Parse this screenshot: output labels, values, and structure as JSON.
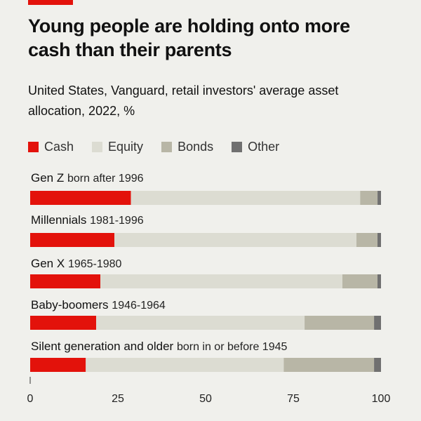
{
  "header": {
    "title": "Young people are holding onto more cash than their parents",
    "subtitle": "United States, Vanguard, retail investors' average asset allocation, 2022, %"
  },
  "colors": {
    "accent": "#e3120b",
    "cash": "#e3120b",
    "equity": "#dcdcd2",
    "bonds": "#b8b6a6",
    "other": "#707070"
  },
  "legend": [
    {
      "label": "Cash",
      "color": "#e3120b"
    },
    {
      "label": "Equity",
      "color": "#dcdcd2"
    },
    {
      "label": "Bonds",
      "color": "#b8b6a6"
    },
    {
      "label": "Other",
      "color": "#707070"
    }
  ],
  "chart_data": {
    "type": "bar",
    "orientation": "horizontal",
    "stacked": true,
    "title": "Young people are holding onto more cash than their parents",
    "subtitle": "United States, Vanguard, retail investors' average asset allocation, 2022, %",
    "categories": [
      {
        "name": "Gen Z",
        "detail": "born after 1996"
      },
      {
        "name": "Millennials",
        "detail": "1981-1996"
      },
      {
        "name": "Gen X",
        "detail": "1965-1980"
      },
      {
        "name": "Baby-boomers",
        "detail": "1946-1964"
      },
      {
        "name": "Silent generation and older",
        "detail": "born in or before 1945"
      }
    ],
    "series": [
      {
        "name": "Cash",
        "values": [
          29,
          24,
          20,
          19,
          16
        ]
      },
      {
        "name": "Equity",
        "values": [
          66,
          69,
          69,
          60,
          57
        ]
      },
      {
        "name": "Bonds",
        "values": [
          5,
          6,
          10,
          20,
          26
        ]
      },
      {
        "name": "Other",
        "values": [
          1,
          1,
          1,
          2,
          2
        ]
      }
    ],
    "xlim": [
      0,
      100
    ],
    "xticks": [
      "0",
      "25",
      "50",
      "75",
      "100"
    ],
    "grid": false,
    "legend": "top-left"
  }
}
